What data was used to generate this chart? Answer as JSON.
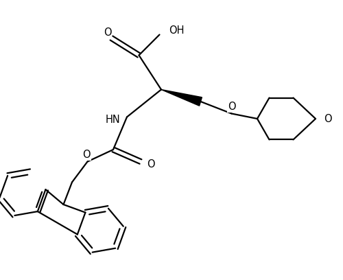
{
  "background_color": "#ffffff",
  "line_color": "#000000",
  "line_width": 1.6,
  "font_size": 10.5,
  "figsize": [
    5.0,
    4.08
  ],
  "dpi": 100,
  "xlim": [
    0,
    10
  ],
  "ylim": [
    0,
    8.16
  ]
}
